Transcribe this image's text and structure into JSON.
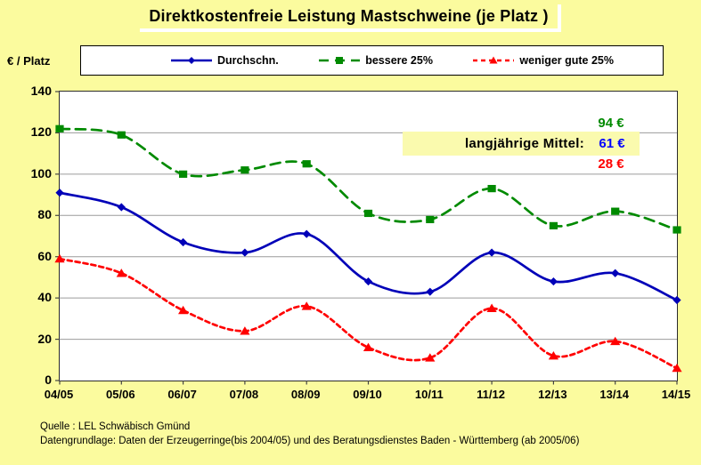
{
  "title": "Direktkostenfreie Leistung Mastschweine (je Platz )",
  "y_axis_title": "€ / Platz",
  "annotation": {
    "label": "langjährige Mittel:",
    "values": [
      {
        "text": "94 €",
        "color": "#008A00"
      },
      {
        "text": "61 €",
        "color": "#0000FF"
      },
      {
        "text": "28 €",
        "color": "#FF0000"
      }
    ]
  },
  "footer": {
    "line1": "Quelle : LEL Schwäbisch Gmünd",
    "line2": "Datengrundlage: Daten der Erzeugerringe(bis 2004/05) und des Beratungsdienstes Baden - Württemberg (ab 2005/06)"
  },
  "colors": {
    "background": "#FBFB9E",
    "plot_background": "#FFFFFF",
    "gridline": "#9C9C9C",
    "average": "#0000B8",
    "best25": "#008A00",
    "worst25": "#FF0000"
  },
  "chart_data": {
    "type": "line",
    "title": "Direktkostenfreie Leistung Mastschweine (je Platz )",
    "ylabel": "€ / Platz",
    "categories": [
      "04/05",
      "05/06",
      "06/07",
      "07/08",
      "08/09",
      "09/10",
      "10/11",
      "11/12",
      "12/13",
      "13/14",
      "14/15"
    ],
    "series": [
      {
        "name": "Durchschn.",
        "color": "#0000B8",
        "marker": "diamond",
        "line": "solid",
        "values": [
          91,
          84,
          67,
          62,
          71,
          48,
          43,
          62,
          48,
          52,
          39
        ],
        "long_term_mean": 61
      },
      {
        "name": "bessere 25%",
        "color": "#008A00",
        "marker": "square",
        "line": "long-dash",
        "values": [
          122,
          119,
          100,
          102,
          105,
          81,
          78,
          93,
          75,
          82,
          73
        ],
        "long_term_mean": 94
      },
      {
        "name": "weniger gute 25%",
        "color": "#FF0000",
        "marker": "triangle",
        "line": "short-dash",
        "values": [
          59,
          52,
          34,
          24,
          36,
          16,
          11,
          35,
          12,
          19,
          6
        ],
        "long_term_mean": 28
      }
    ],
    "ylim": [
      0,
      140
    ],
    "yticks": [
      0,
      20,
      40,
      60,
      80,
      100,
      120,
      140
    ],
    "grid": true,
    "legend_position": "top",
    "smooth_lines": true
  }
}
